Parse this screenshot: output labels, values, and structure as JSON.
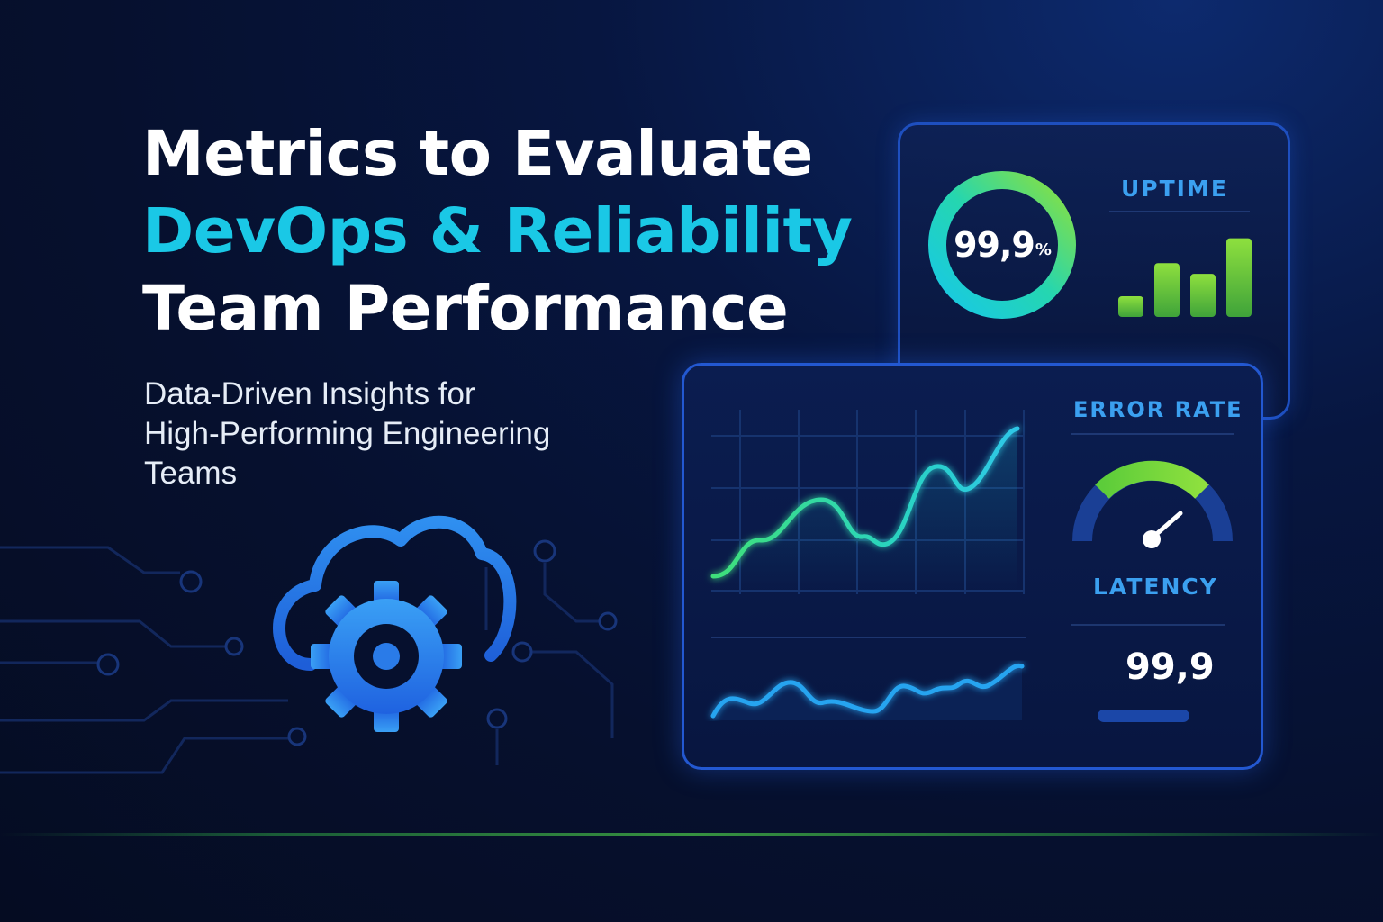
{
  "headline": {
    "line1": "Metrics to Evaluate",
    "line2": "DevOps & Reliability",
    "line3": "Team Performance"
  },
  "subtitle": {
    "line1": "Data-Driven Insights for",
    "line2": "High-Performing Engineering",
    "line3": "Teams"
  },
  "hero_icon": "cloud-gear-icon",
  "uptime_panel": {
    "gauge_value": "99,9",
    "gauge_unit": "%",
    "gauge_fill_fraction": 1.0,
    "label": "UPTIME",
    "bar_levels": [
      0.25,
      0.65,
      0.52,
      0.95
    ]
  },
  "metrics_panel": {
    "error_rate_label": "ERROR RATE",
    "error_gauge_level": 0.75,
    "latency_label": "LATENCY",
    "latency_value": "99,9"
  },
  "colors": {
    "accent_cyan": "#1ac8e6",
    "accent_green": "#7ed33f",
    "accent_blue": "#2a7be8",
    "background": "#06102e"
  }
}
